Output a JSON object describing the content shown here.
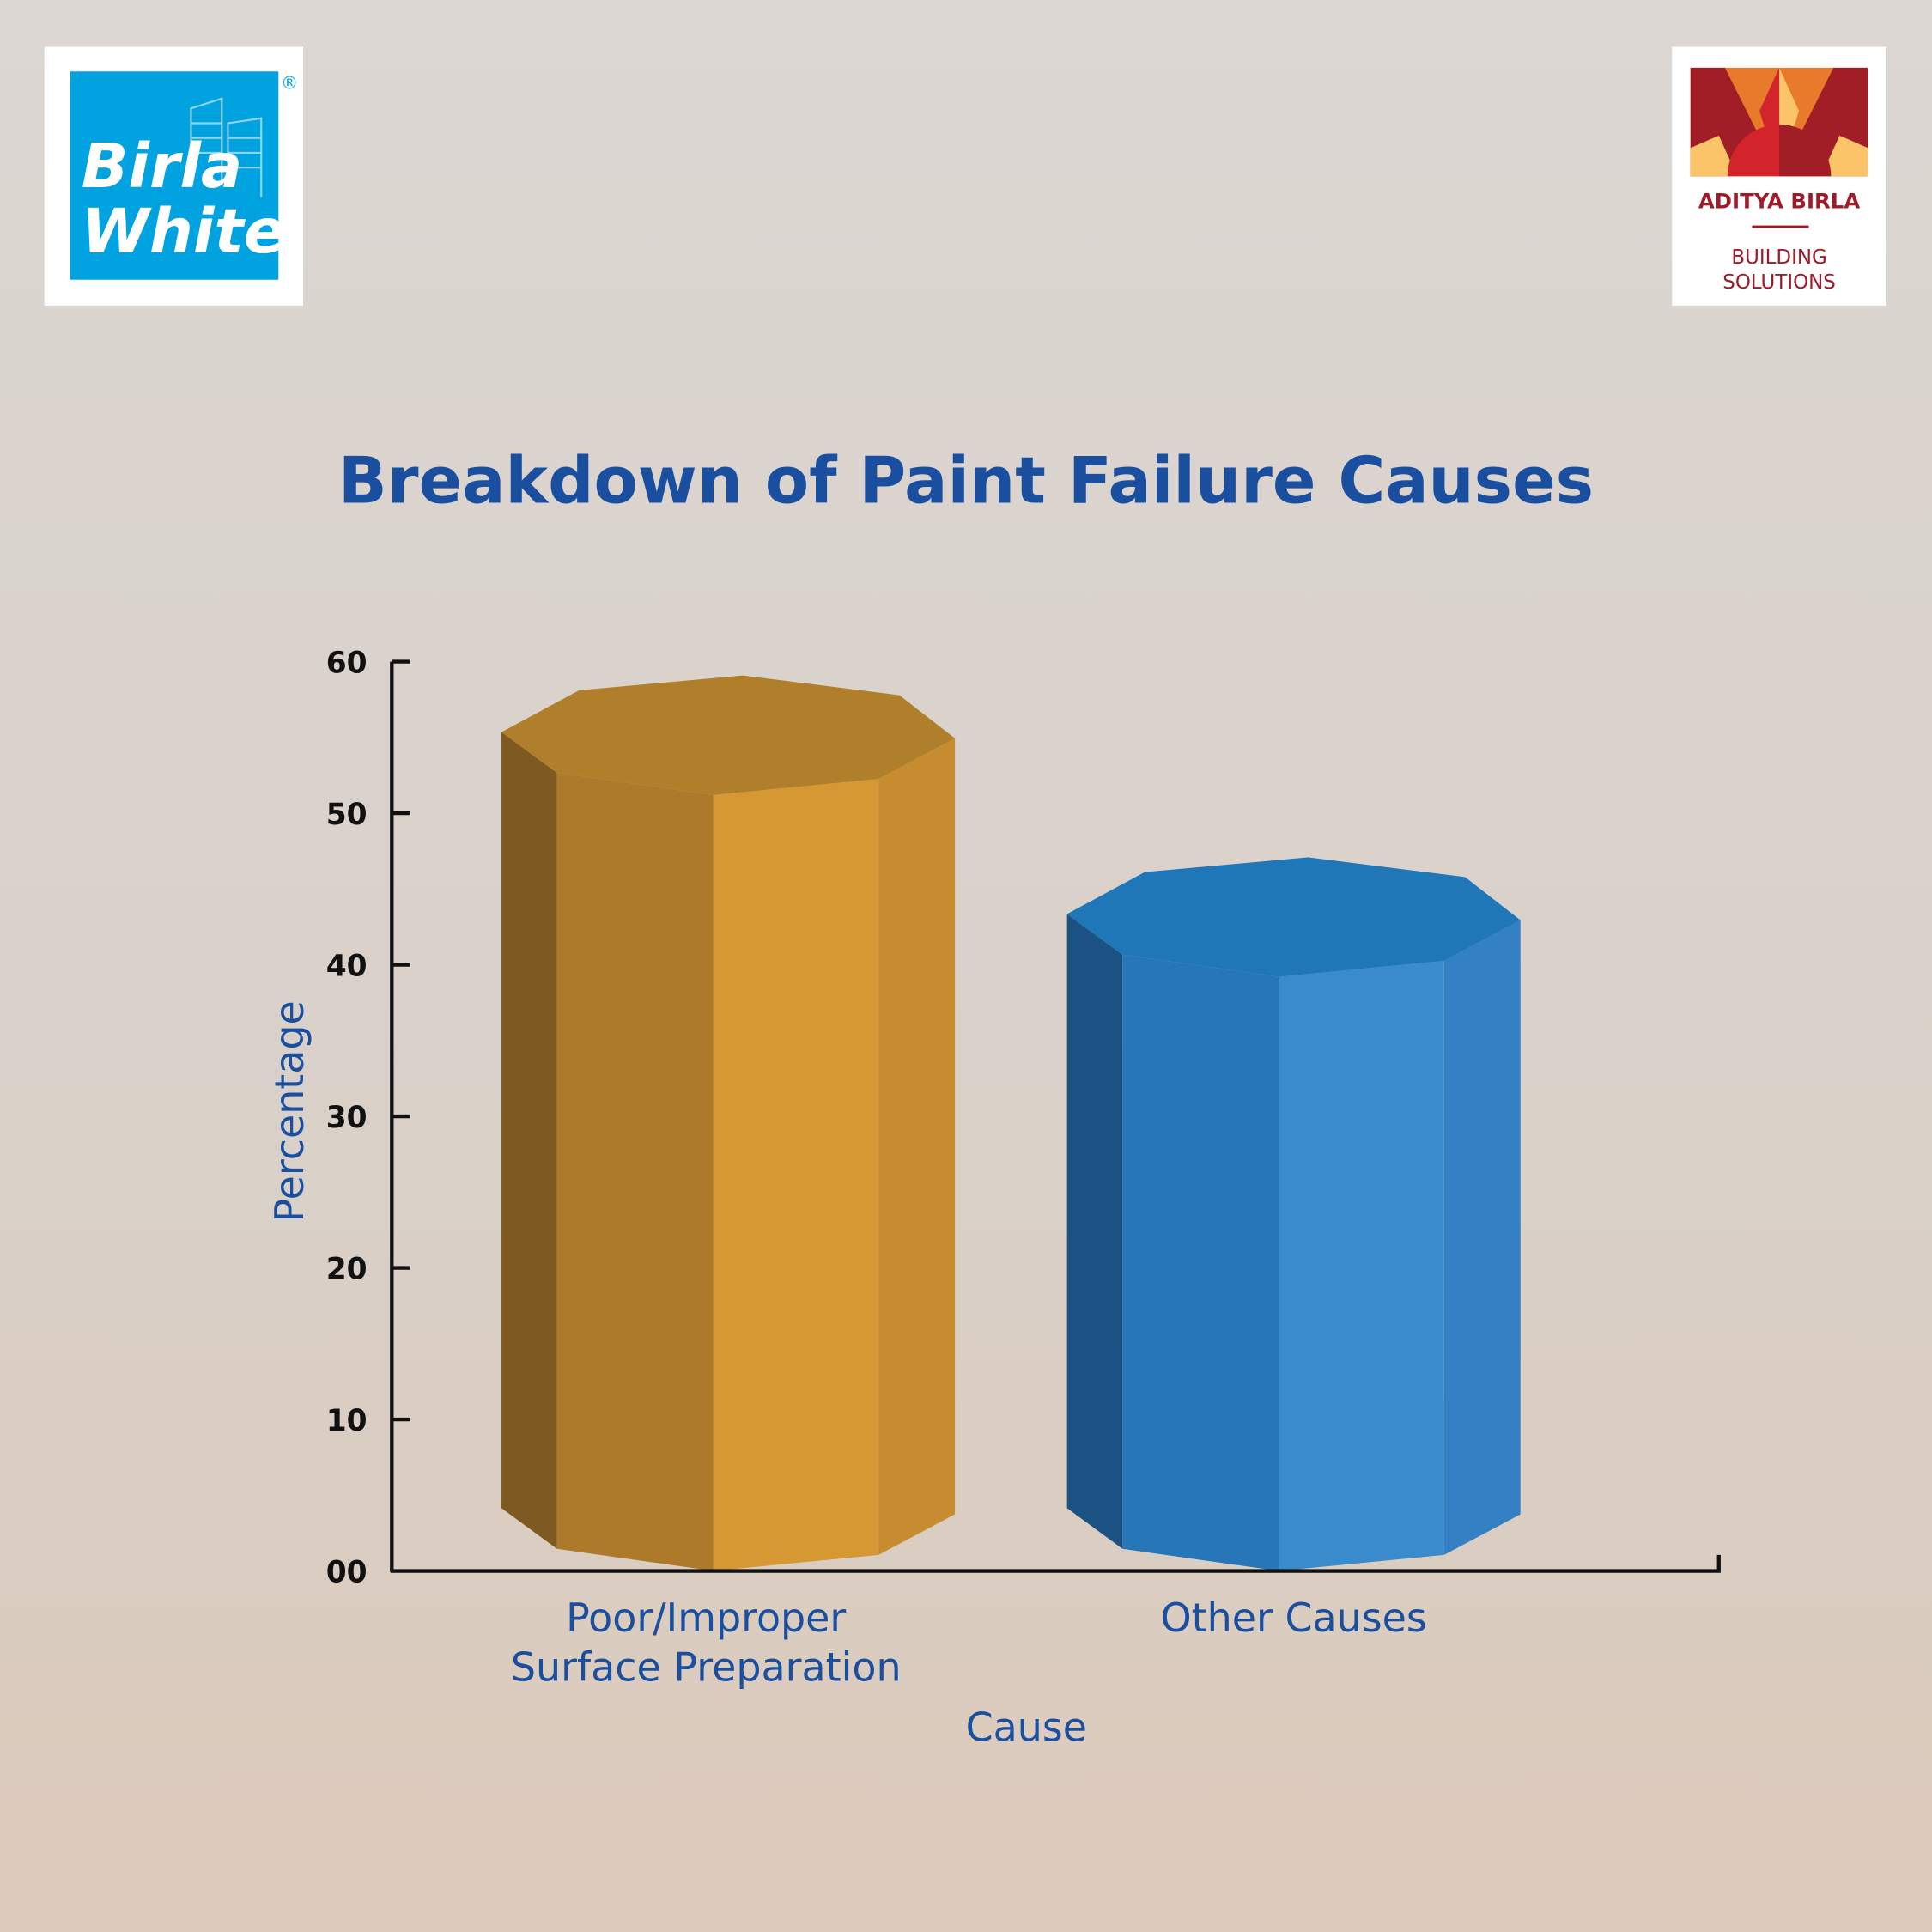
{
  "logos": {
    "left": {
      "text_line1": "Birla",
      "text_line2": "White",
      "mark": "®",
      "color": "#00a3e0"
    },
    "right": {
      "name": "ADITYA BIRLA",
      "sub1": "BUILDING",
      "sub2": "SOLUTIONS",
      "color": "#9e1b2a"
    }
  },
  "chart_data": {
    "type": "bar",
    "style": "3d-octagonal-prism",
    "title": "Breakdown of Paint Failure Causes",
    "xlabel": "Cause",
    "ylabel": "Percentage",
    "categories": [
      "Poor/Improper Surface Preparation",
      "Other Causes"
    ],
    "category_lines": [
      [
        "Poor/Improper",
        "Surface Preparation"
      ],
      [
        "Other Causes"
      ]
    ],
    "values": [
      56,
      44
    ],
    "ylim": [
      0,
      60
    ],
    "yticks": [
      0,
      10,
      20,
      30,
      40,
      50,
      60
    ],
    "ytick_labels": [
      "00",
      "10",
      "20",
      "30",
      "40",
      "50",
      "60"
    ],
    "grid": false,
    "legend": "none",
    "colors": [
      "#d59833",
      "#3a8bcb"
    ],
    "title_color": "#1a4fa0"
  }
}
